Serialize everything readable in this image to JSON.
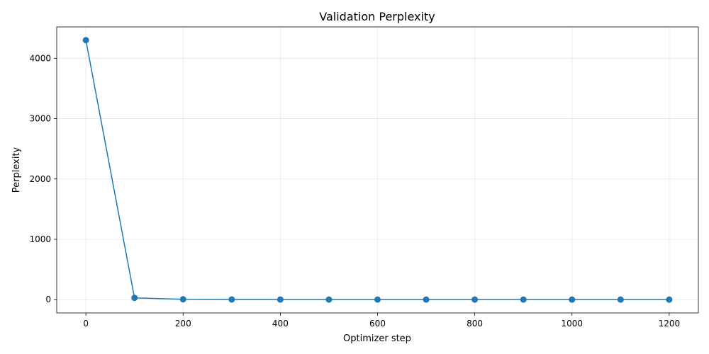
{
  "chart_data": {
    "type": "line",
    "title": "Validation Perplexity",
    "xlabel": "Optimizer step",
    "ylabel": "Perplexity",
    "xlim": [
      -60,
      1260
    ],
    "ylim": [
      -220,
      4520
    ],
    "xticks": [
      0,
      200,
      400,
      600,
      800,
      1000,
      1200
    ],
    "yticks": [
      0,
      1000,
      2000,
      3000,
      4000
    ],
    "grid": true,
    "series": [
      {
        "color": "#1f77b4",
        "marker": "circle",
        "x": [
          0,
          100,
          200,
          300,
          400,
          500,
          600,
          700,
          800,
          900,
          1000,
          1100,
          1200
        ],
        "y": [
          4300,
          30,
          6,
          3,
          2,
          2,
          1.5,
          1.5,
          1.4,
          1.4,
          1.3,
          1.3,
          1.3
        ]
      }
    ]
  }
}
